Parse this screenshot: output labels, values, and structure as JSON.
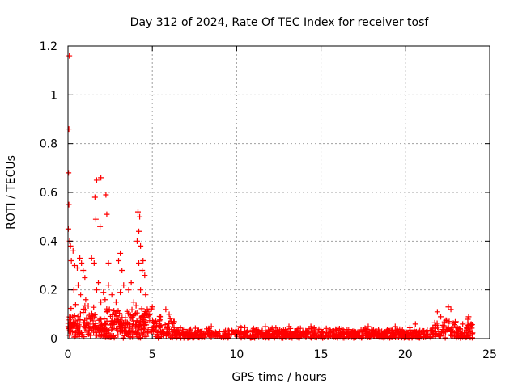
{
  "chart_data": {
    "type": "scatter",
    "title": "Day 312 of 2024, Rate Of TEC Index for receiver tosf",
    "xlabel": "GPS time / hours",
    "ylabel": "ROTI / TECUs",
    "xlim": [
      0,
      25
    ],
    "ylim": [
      0,
      1.2
    ],
    "x_ticks": [
      0,
      5,
      10,
      15,
      20,
      25
    ],
    "y_ticks": [
      0,
      0.2,
      0.4,
      0.6,
      0.8,
      1.0,
      1.2
    ],
    "x_tick_labels": [
      "0",
      "5",
      "10",
      "15",
      "20",
      "25"
    ],
    "y_tick_labels": [
      "0",
      "0.2",
      "0.4",
      "0.6",
      "0.8",
      "1",
      "1.2"
    ],
    "grid": true,
    "marker": "+",
    "color": "#ff0000",
    "series": [
      {
        "name": "ROTI",
        "points": [
          [
            0.08,
            1.16
          ],
          [
            0.05,
            0.86
          ],
          [
            0.03,
            0.68
          ],
          [
            0.05,
            0.55
          ],
          [
            0.02,
            0.45
          ],
          [
            0.1,
            0.4
          ],
          [
            0.15,
            0.38
          ],
          [
            0.3,
            0.36
          ],
          [
            0.2,
            0.32
          ],
          [
            0.4,
            0.3
          ],
          [
            0.55,
            0.29
          ],
          [
            0.7,
            0.33
          ],
          [
            0.8,
            0.31
          ],
          [
            0.9,
            0.28
          ],
          [
            1.0,
            0.25
          ],
          [
            0.6,
            0.22
          ],
          [
            0.35,
            0.2
          ],
          [
            0.75,
            0.18
          ],
          [
            1.05,
            0.16
          ],
          [
            0.45,
            0.14
          ],
          [
            1.7,
            0.65
          ],
          [
            1.95,
            0.66
          ],
          [
            1.6,
            0.58
          ],
          [
            2.25,
            0.59
          ],
          [
            1.65,
            0.49
          ],
          [
            1.9,
            0.46
          ],
          [
            2.3,
            0.51
          ],
          [
            1.4,
            0.33
          ],
          [
            1.55,
            0.31
          ],
          [
            2.4,
            0.31
          ],
          [
            1.8,
            0.23
          ],
          [
            1.7,
            0.2
          ],
          [
            2.1,
            0.19
          ],
          [
            2.6,
            0.18
          ],
          [
            1.95,
            0.15
          ],
          [
            2.4,
            0.22
          ],
          [
            2.2,
            0.16
          ],
          [
            2.85,
            0.15
          ],
          [
            3.1,
            0.35
          ],
          [
            3.0,
            0.32
          ],
          [
            3.2,
            0.28
          ],
          [
            3.3,
            0.22
          ],
          [
            3.1,
            0.19
          ],
          [
            3.6,
            0.2
          ],
          [
            3.75,
            0.23
          ],
          [
            3.9,
            0.15
          ],
          [
            4.15,
            0.52
          ],
          [
            4.25,
            0.5
          ],
          [
            4.2,
            0.44
          ],
          [
            4.1,
            0.4
          ],
          [
            4.3,
            0.38
          ],
          [
            4.2,
            0.31
          ],
          [
            4.45,
            0.32
          ],
          [
            4.4,
            0.28
          ],
          [
            4.55,
            0.26
          ],
          [
            4.3,
            0.2
          ],
          [
            4.6,
            0.18
          ],
          [
            4.7,
            0.12
          ],
          [
            5.0,
            0.13
          ],
          [
            5.5,
            0.09
          ],
          [
            5.8,
            0.12
          ],
          [
            6.0,
            0.1
          ],
          [
            6.3,
            0.07
          ],
          [
            8.5,
            0.05
          ],
          [
            10.2,
            0.05
          ],
          [
            11.7,
            0.05
          ],
          [
            13.1,
            0.05
          ],
          [
            14.4,
            0.05
          ],
          [
            16.0,
            0.04
          ],
          [
            17.8,
            0.05
          ],
          [
            19.4,
            0.05
          ],
          [
            20.6,
            0.06
          ],
          [
            21.9,
            0.11
          ],
          [
            22.1,
            0.09
          ],
          [
            22.55,
            0.13
          ],
          [
            22.7,
            0.12
          ],
          [
            23.0,
            0.07
          ],
          [
            23.4,
            0.06
          ],
          [
            23.75,
            0.09
          ],
          [
            23.9,
            0.06
          ]
        ]
      }
    ]
  }
}
